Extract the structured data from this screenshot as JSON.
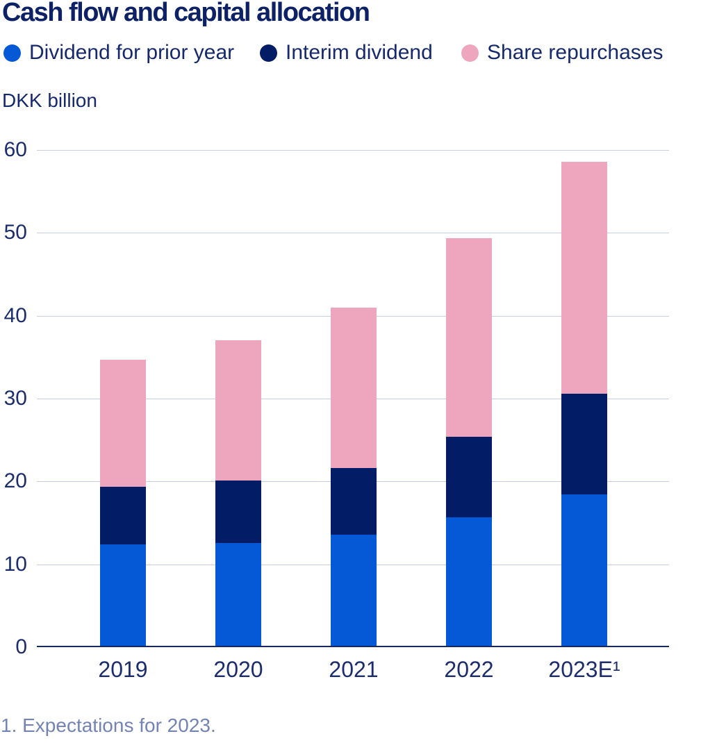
{
  "title": "Cash flow and capital allocation",
  "unit_label": "DKK billion",
  "footnote": "1. Expectations for 2023.",
  "colors": {
    "dividend_prior_year": "#0659d6",
    "interim_dividend": "#021c66",
    "share_repurchases": "#eda6bd",
    "title_text": "#0d2167",
    "axis_text": "#1b2d6e",
    "gridline": "#c7cdde",
    "axis_line": "#18295f",
    "footnote_text": "#7384b4",
    "background": "#ffffff"
  },
  "legend": [
    {
      "label": "Dividend for prior year",
      "color": "#0659d6",
      "icon": "circle-icon"
    },
    {
      "label": "Interim dividend",
      "color": "#021c66",
      "icon": "circle-icon"
    },
    {
      "label": "Share repurchases",
      "color": "#eda6bd",
      "icon": "circle-icon"
    }
  ],
  "chart_data": {
    "type": "bar",
    "stacked": true,
    "title": "Cash flow and capital allocation",
    "ylabel": "DKK billion",
    "xlabel": "",
    "categories": [
      "2019",
      "2020",
      "2021",
      "2022",
      "2023E¹"
    ],
    "series": [
      {
        "name": "Dividend for prior year",
        "color": "#0659d6",
        "values": [
          12.4,
          12.6,
          13.6,
          15.7,
          18.4
        ]
      },
      {
        "name": "Interim dividend",
        "color": "#021c66",
        "values": [
          7.0,
          7.5,
          8.0,
          9.7,
          12.2
        ]
      },
      {
        "name": "Share repurchases",
        "color": "#eda6bd",
        "values": [
          15.3,
          16.9,
          19.4,
          24.0,
          28.0
        ]
      }
    ],
    "totals": [
      34.7,
      37.0,
      41.0,
      49.4,
      58.6
    ],
    "ylim": [
      0,
      60
    ],
    "yticks": [
      0,
      10,
      20,
      30,
      40,
      50,
      60
    ],
    "grid": true,
    "legend_position": "top"
  }
}
